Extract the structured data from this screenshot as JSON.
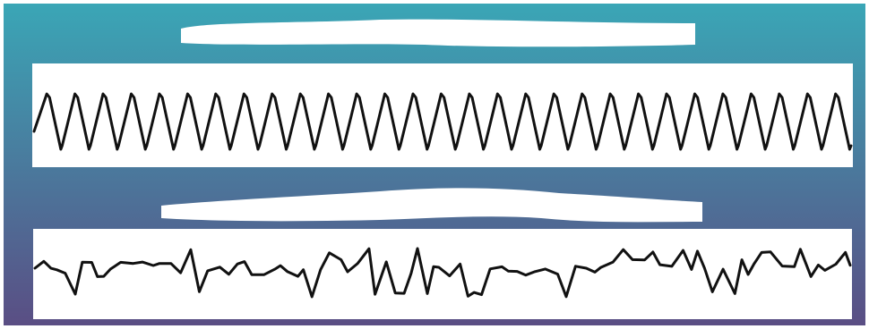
{
  "colors": {
    "gradient_top": "#3aa6b6",
    "gradient_bottom": "#5a4e84",
    "panel": "#ffffff",
    "redaction": "#ffffff",
    "trace": "#111111"
  },
  "panels": [
    {
      "id": "top",
      "label_redacted": true,
      "trace": {
        "type": "regular-periodic-wave",
        "cycles": 29
      }
    },
    {
      "id": "bottom",
      "label_redacted": true,
      "trace": {
        "type": "irregular-wave"
      }
    }
  ]
}
